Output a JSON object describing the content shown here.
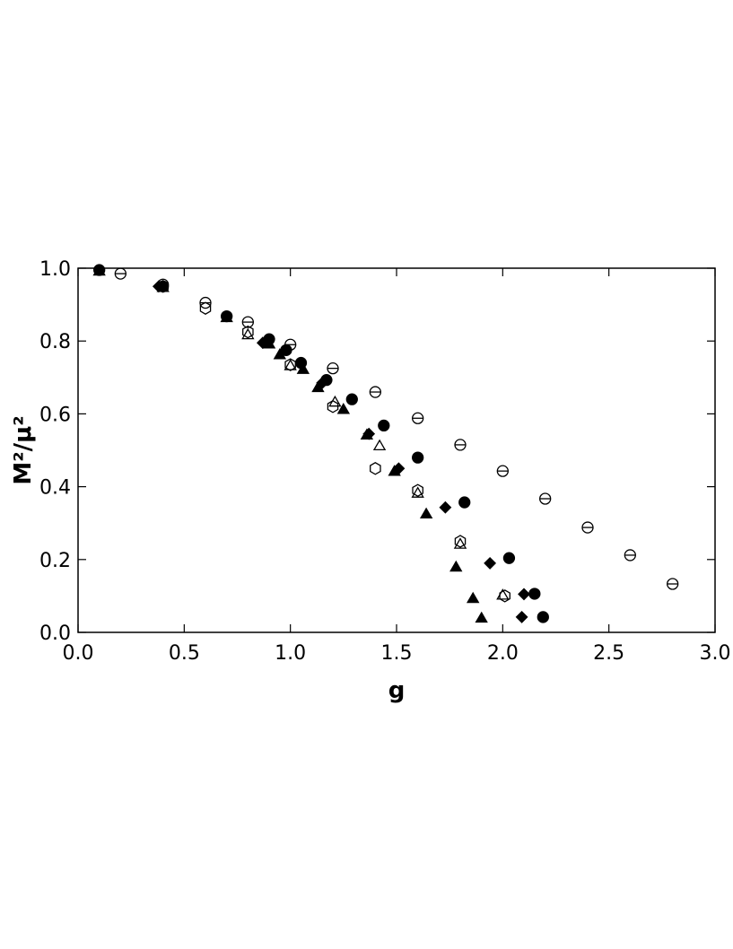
{
  "chart_data": {
    "type": "scatter",
    "xlabel": "g",
    "ylabel": "M²/μ²",
    "xlim": [
      0,
      3
    ],
    "ylim": [
      0,
      1
    ],
    "xticks": [
      {
        "value": 0,
        "label": "0.0"
      },
      {
        "value": 0.5,
        "label": "0.5"
      },
      {
        "value": 1,
        "label": "1.0"
      },
      {
        "value": 1.5,
        "label": "1.5"
      },
      {
        "value": 2,
        "label": "2.0"
      },
      {
        "value": 2.5,
        "label": "2.5"
      },
      {
        "value": 3,
        "label": "3.0"
      }
    ],
    "yticks": [
      {
        "value": 0,
        "label": "0.0"
      },
      {
        "value": 0.2,
        "label": "0.2"
      },
      {
        "value": 0.4,
        "label": "0.4"
      },
      {
        "value": 0.6,
        "label": "0.6"
      },
      {
        "value": 0.8,
        "label": "0.8"
      },
      {
        "value": 1,
        "label": "1.0"
      }
    ],
    "series": [
      {
        "marker": "theta",
        "color": "#000000",
        "x": [
          0.2,
          0.4,
          0.6,
          0.8,
          1.0,
          1.2,
          1.4,
          1.6,
          1.8,
          2.0,
          2.2,
          2.4,
          2.6,
          2.8
        ],
        "values": [
          0.985,
          0.955,
          0.905,
          0.852,
          0.79,
          0.725,
          0.66,
          0.588,
          0.515,
          0.443,
          0.367,
          0.288,
          0.212,
          0.133
        ]
      },
      {
        "marker": "circle-filled",
        "color": "#000000",
        "x": [
          0.1,
          0.4,
          0.7,
          0.9,
          0.98,
          1.05,
          1.17,
          1.29,
          1.44,
          1.6,
          1.82,
          2.03,
          2.15,
          2.19
        ],
        "values": [
          0.995,
          0.95,
          0.868,
          0.805,
          0.775,
          0.74,
          0.693,
          0.64,
          0.568,
          0.48,
          0.357,
          0.204,
          0.106,
          0.042
        ]
      },
      {
        "marker": "triangle-filled",
        "color": "#000000",
        "x": [
          0.1,
          0.7,
          0.9,
          0.95,
          1.06,
          1.13,
          1.25,
          1.36,
          1.49,
          1.64,
          1.78,
          1.86,
          1.9
        ],
        "values": [
          0.99,
          0.862,
          0.79,
          0.76,
          0.72,
          0.67,
          0.61,
          0.54,
          0.44,
          0.323,
          0.177,
          0.091,
          0.037
        ]
      },
      {
        "marker": "diamond-filled",
        "color": "#000000",
        "x": [
          0.38,
          0.87,
          1.15,
          1.37,
          1.51,
          1.73,
          1.94,
          2.1,
          2.09
        ],
        "values": [
          0.95,
          0.795,
          0.685,
          0.545,
          0.45,
          0.343,
          0.19,
          0.105,
          0.042
        ]
      },
      {
        "marker": "triangle-open",
        "color": "#000000",
        "x": [
          0.4,
          0.8,
          1.0,
          1.21,
          1.42,
          1.6,
          1.8,
          2.0
        ],
        "values": [
          0.945,
          0.815,
          0.73,
          0.63,
          0.51,
          0.38,
          0.24,
          0.1
        ]
      },
      {
        "marker": "hexagon-open",
        "color": "#000000",
        "x": [
          0.4,
          0.6,
          0.8,
          1.0,
          1.2,
          1.4,
          1.6,
          1.8,
          2.01
        ],
        "values": [
          0.95,
          0.89,
          0.825,
          0.735,
          0.62,
          0.45,
          0.39,
          0.25,
          0.1
        ]
      }
    ]
  }
}
